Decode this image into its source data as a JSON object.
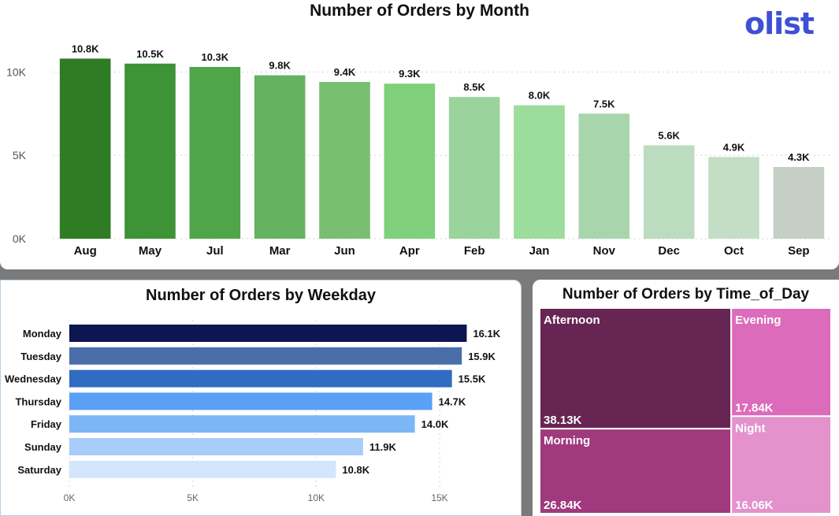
{
  "logo": {
    "text": "olist",
    "color": "#3f4fd6"
  },
  "chart_data": [
    {
      "type": "bar",
      "orientation": "vertical",
      "title": "Number of Orders by Month",
      "categories": [
        "Aug",
        "May",
        "Jul",
        "Mar",
        "Jun",
        "Apr",
        "Feb",
        "Jan",
        "Nov",
        "Dec",
        "Oct",
        "Sep"
      ],
      "values": [
        10800,
        10500,
        10300,
        9800,
        9400,
        9300,
        8500,
        8000,
        7500,
        5600,
        4900,
        4300
      ],
      "data_labels": [
        "10.8K",
        "10.5K",
        "10.3K",
        "9.8K",
        "9.4K",
        "9.3K",
        "8.5K",
        "8.0K",
        "7.5K",
        "5.6K",
        "4.9K",
        "4.3K"
      ],
      "colors": [
        "#307c25",
        "#3e9337",
        "#4fa54a",
        "#65b260",
        "#79bf72",
        "#80d07b",
        "#9ad49c",
        "#9cdc9c",
        "#a8d6ac",
        "#bcdcbf",
        "#c4dec6",
        "#c5cfc6"
      ],
      "yticks": [
        0,
        5000,
        10000
      ],
      "ytick_labels": [
        "0K",
        "5K",
        "10K"
      ],
      "ylim": [
        0,
        12000
      ],
      "grid": true
    },
    {
      "type": "bar",
      "orientation": "horizontal",
      "title": "Number of Orders by Weekday",
      "categories": [
        "Monday",
        "Tuesday",
        "Wednesday",
        "Thursday",
        "Friday",
        "Sunday",
        "Saturday"
      ],
      "values": [
        16100,
        15900,
        15500,
        14700,
        14000,
        11900,
        10800
      ],
      "data_labels": [
        "16.1K",
        "15.9K",
        "15.5K",
        "14.7K",
        "14.0K",
        "11.9K",
        "10.8K"
      ],
      "colors": [
        "#0c1650",
        "#4a6ea9",
        "#2f6cc2",
        "#5aa1f5",
        "#7cb6f6",
        "#a8cdf9",
        "#d3e6fb"
      ],
      "xticks": [
        0,
        5000,
        10000,
        15000
      ],
      "xtick_labels": [
        "0K",
        "5K",
        "10K",
        "15K"
      ],
      "xlim": [
        0,
        17500
      ],
      "grid": true
    },
    {
      "type": "treemap",
      "title": "Number of Orders by Time_of_Day",
      "items": [
        {
          "name": "Afternoon",
          "value": 38130,
          "label": "38.13K",
          "color": "#672553"
        },
        {
          "name": "Morning",
          "value": 26840,
          "label": "26.84K",
          "color": "#a0397e"
        },
        {
          "name": "Evening",
          "value": 17840,
          "label": "17.84K",
          "color": "#dc6bbb"
        },
        {
          "name": "Night",
          "value": 16060,
          "label": "16.06K",
          "color": "#e392cc"
        }
      ]
    }
  ]
}
